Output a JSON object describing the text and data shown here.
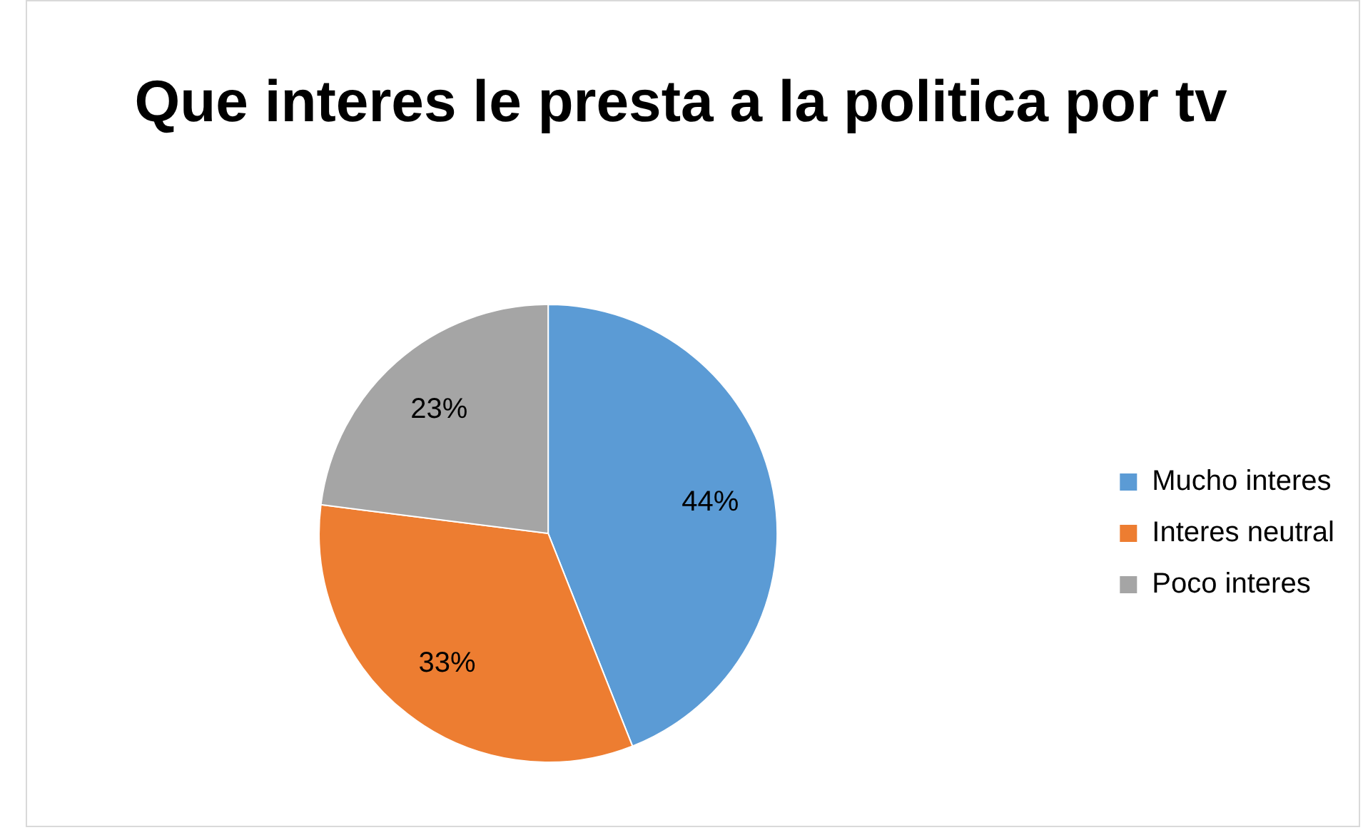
{
  "chart_data": {
    "type": "pie",
    "title": "Que interes le presta a la politica por tv",
    "categories": [
      "Mucho interes",
      "Interes neutral",
      "Poco interes"
    ],
    "values": [
      44,
      33,
      23
    ],
    "colors": [
      "#5b9bd5",
      "#ed7d31",
      "#a5a5a5"
    ],
    "value_labels": [
      "44%",
      "33%",
      "23%"
    ],
    "legend": "right"
  }
}
